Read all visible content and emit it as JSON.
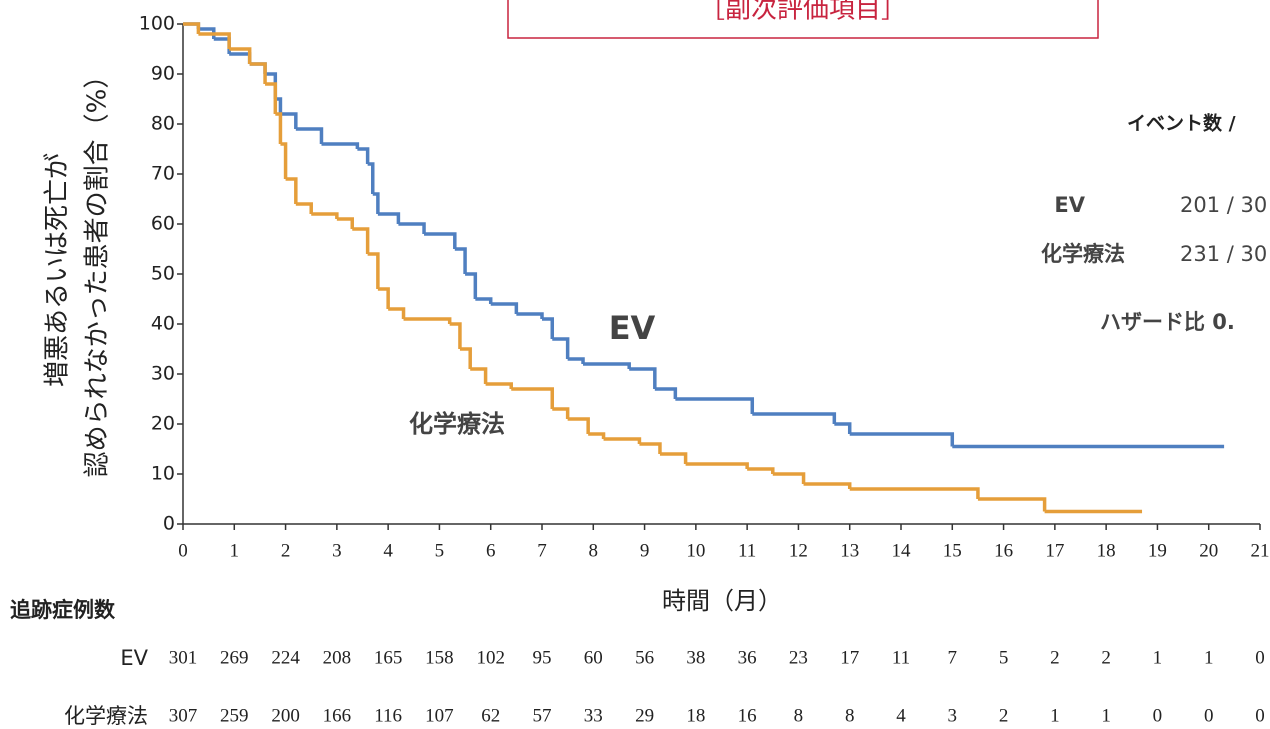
{
  "chart_data": {
    "type": "line",
    "title": "［副次評価項目］",
    "y_label_lines": [
      "増悪あるいは死亡が",
      "認められなかった患者の割合（%）"
    ],
    "x_label": "時間（月）",
    "annotations": [
      "EV",
      "化学療法"
    ],
    "legend_header": "イベント数 / ",
    "legend_rows": [
      [
        "EV",
        "201 / 30"
      ],
      [
        "化学療法",
        "231 / 30"
      ]
    ],
    "hazard_text": "ハザード比  0.",
    "xlim": [
      0,
      21
    ],
    "ylim": [
      0,
      100
    ],
    "xticks": [
      0,
      1,
      2,
      3,
      4,
      5,
      6,
      7,
      8,
      9,
      10,
      11,
      12,
      13,
      14,
      15,
      16,
      17,
      18,
      19,
      20,
      21
    ],
    "yticks": [
      0,
      10,
      20,
      30,
      40,
      50,
      60,
      70,
      80,
      90,
      100
    ],
    "series": [
      {
        "name": "EV",
        "color": "#4f7fc0",
        "x": [
          0,
          0.3,
          0.6,
          0.9,
          1.3,
          1.6,
          1.8,
          1.9,
          2.2,
          2.7,
          3.4,
          3.6,
          3.7,
          3.8,
          4.2,
          4.7,
          5.3,
          5.5,
          5.7,
          6.0,
          6.5,
          7.0,
          7.2,
          7.5,
          7.8,
          8.7,
          9.2,
          9.6,
          11.1,
          12.7,
          13.0,
          15.0,
          20.3
        ],
        "values": [
          100,
          99,
          97,
          94,
          92,
          90,
          85,
          82,
          79,
          76,
          75,
          72,
          66,
          62,
          60,
          58,
          55,
          50,
          45,
          44,
          42,
          41,
          37,
          33,
          32,
          31,
          27,
          25,
          22,
          20,
          18,
          15.5,
          15.5
        ]
      },
      {
        "name": "化学療法",
        "color": "#e59e3a",
        "x": [
          0,
          0.3,
          0.9,
          1.3,
          1.6,
          1.8,
          1.9,
          2.0,
          2.2,
          2.5,
          3.0,
          3.3,
          3.6,
          3.8,
          4.0,
          4.3,
          5.2,
          5.4,
          5.6,
          5.9,
          6.4,
          7.2,
          7.5,
          7.9,
          8.2,
          8.9,
          9.3,
          9.8,
          11.0,
          11.5,
          12.1,
          13.0,
          15.5,
          16.8,
          18.7
        ],
        "values": [
          100,
          98,
          95,
          92,
          88,
          82,
          76,
          69,
          64,
          62,
          61,
          59,
          54,
          47,
          43,
          41,
          40,
          35,
          31,
          28,
          27,
          23,
          21,
          18,
          17,
          16,
          14,
          12,
          11,
          10,
          8,
          7,
          5,
          2.5,
          2.5
        ]
      }
    ],
    "risk_table": {
      "header": "追跡症例数",
      "rows": [
        {
          "label": "EV",
          "values": [
            301,
            269,
            224,
            208,
            165,
            158,
            102,
            95,
            60,
            56,
            38,
            36,
            23,
            17,
            11,
            7,
            5,
            2,
            2,
            1,
            1,
            0
          ]
        },
        {
          "label": "化学療法",
          "values": [
            307,
            259,
            200,
            166,
            116,
            107,
            62,
            57,
            33,
            29,
            18,
            16,
            8,
            8,
            4,
            3,
            2,
            1,
            1,
            0,
            0,
            0
          ]
        }
      ]
    }
  }
}
